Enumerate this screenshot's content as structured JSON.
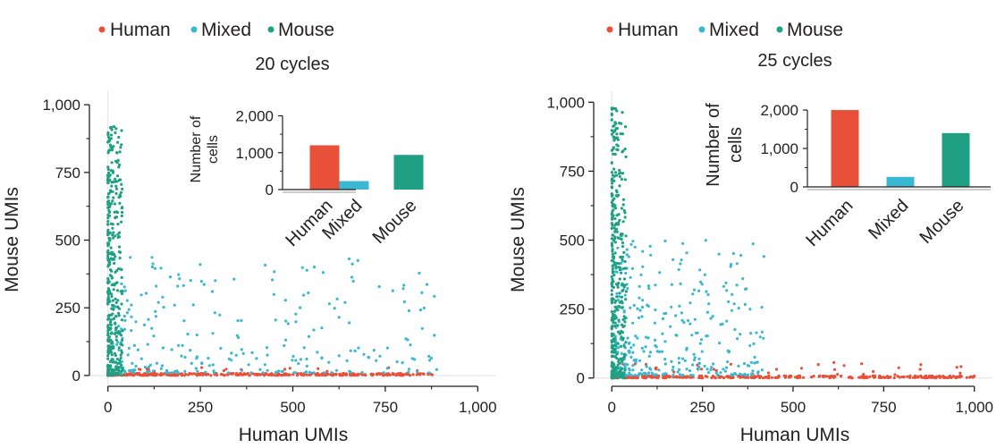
{
  "colors": {
    "human": "#e8503a",
    "mixed": "#3bb8d1",
    "mouse": "#1fa083",
    "axis": "#231f20",
    "grid": "#e6e6e6"
  },
  "legend": [
    {
      "label": "Human",
      "key": "human"
    },
    {
      "label": "Mixed",
      "key": "mixed"
    },
    {
      "label": "Mouse",
      "key": "mouse"
    }
  ],
  "chart_data": [
    {
      "type": "scatter",
      "title": "20 cycles",
      "xlabel": "Human UMIs",
      "ylabel": "Mouse UMIs",
      "xlim": [
        -50,
        1050
      ],
      "ylim": [
        -40,
        1050
      ],
      "xticks": [
        0,
        250,
        500,
        750,
        1000
      ],
      "yticks": [
        0,
        250,
        500,
        750,
        1000
      ],
      "tick_labels": [
        "0",
        "250",
        "500",
        "750",
        "1,000"
      ],
      "series": [
        {
          "name": "Human",
          "key": "human",
          "approx_range": {
            "x": [
              0,
              880
            ],
            "y": [
              0,
              30
            ]
          }
        },
        {
          "name": "Mixed",
          "key": "mixed",
          "approx_range": {
            "x": [
              10,
              890
            ],
            "y": [
              10,
              440
            ]
          }
        },
        {
          "name": "Mouse",
          "key": "mouse",
          "approx_range": {
            "x": [
              0,
              40
            ],
            "y": [
              0,
              920
            ]
          }
        }
      ],
      "inset": {
        "type": "bar",
        "ylabel": "Number of cells",
        "ylabel_lines": [
          "Number of",
          "cells"
        ],
        "categories": [
          "Human",
          "Mixed",
          "Mouse"
        ],
        "values": [
          1200,
          230,
          940
        ],
        "ylim": [
          0,
          2400
        ],
        "yticks": [
          0,
          1000,
          2000
        ],
        "ytick_labels": [
          "0",
          "1,000",
          "2,000"
        ]
      }
    },
    {
      "type": "scatter",
      "title": "25 cycles",
      "xlabel": "Human UMIs",
      "ylabel": "Mouse UMIs",
      "xlim": [
        -50,
        1050
      ],
      "ylim": [
        -30,
        1040
      ],
      "xticks": [
        0,
        250,
        500,
        750,
        1000
      ],
      "yticks": [
        0,
        250,
        500,
        750,
        1000
      ],
      "tick_labels": [
        "0",
        "250",
        "500",
        "750",
        "1,000"
      ],
      "series": [
        {
          "name": "Human",
          "key": "human",
          "approx_range": {
            "x": [
              0,
              1000
            ],
            "y": [
              0,
              60
            ]
          }
        },
        {
          "name": "Mixed",
          "key": "mixed",
          "approx_range": {
            "x": [
              10,
              420
            ],
            "y": [
              10,
              500
            ]
          }
        },
        {
          "name": "Mouse",
          "key": "mouse",
          "approx_range": {
            "x": [
              0,
              40
            ],
            "y": [
              0,
              980
            ]
          }
        }
      ],
      "inset": {
        "type": "bar",
        "ylabel": "Number of cells",
        "ylabel_lines": [
          "Number of",
          "cells"
        ],
        "categories": [
          "Human",
          "Mixed",
          "Mouse"
        ],
        "values": [
          2000,
          260,
          1400
        ],
        "ylim": [
          0,
          2350
        ],
        "yticks": [
          0,
          1000,
          2000
        ],
        "ytick_labels": [
          "0",
          "1,000",
          "2,000"
        ]
      }
    }
  ]
}
